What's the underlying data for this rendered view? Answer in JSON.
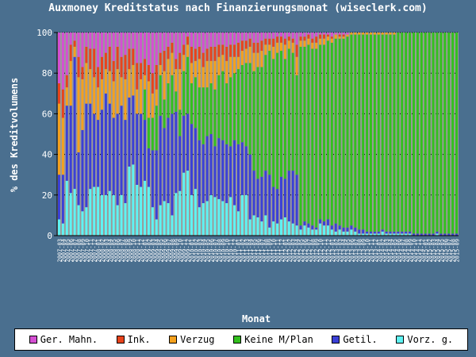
{
  "chart_data": {
    "type": "bar",
    "stacked": true,
    "title": "Auxmoney Kreditstatus nach Finanzierungsmonat (wiseclerk.com)",
    "xlabel": "Monat",
    "ylabel": "% des Kreditvolumens",
    "ylim": [
      0,
      100
    ],
    "yticks": [
      0,
      20,
      40,
      60,
      80,
      100
    ],
    "grid": true,
    "legend_position": "bottom",
    "colors": {
      "plot_background": "#9a9a9a",
      "page_background": "#4a6f8f"
    },
    "categories": [
      "2007-03",
      "2007-04",
      "2007-05",
      "2007-06",
      "2007-07",
      "2007-08",
      "2007-09",
      "2007-10",
      "2007-11",
      "2007-12",
      "2008-01",
      "2008-02",
      "2008-03",
      "2008-04",
      "2008-05",
      "2008-06",
      "2008-07",
      "2008-08",
      "2008-09",
      "2008-10",
      "2008-11",
      "2008-12",
      "2009-01",
      "2009-02",
      "2009-03",
      "2009-04",
      "2009-05",
      "2009-06",
      "2009-07",
      "2009-08",
      "2009-09",
      "2009-10",
      "2009-11",
      "2009-12",
      "2010-01",
      "2010-02",
      "2010-03",
      "2010-04",
      "2010-05",
      "2010-06",
      "2010-07",
      "2010-08",
      "2010-09",
      "2010-10",
      "2010-11",
      "2010-12",
      "2011-01",
      "2011-02",
      "2011-03",
      "2011-04",
      "2011-05",
      "2011-06",
      "2011-07",
      "2011-08",
      "2011-09",
      "2011-10",
      "2011-11",
      "2011-12",
      "2012-01",
      "2012-02",
      "2012-03",
      "2012-04",
      "2012-05",
      "2012-06",
      "2012-07",
      "2012-08",
      "2012-09",
      "2012-10",
      "2012-11",
      "2012-12",
      "2013-01",
      "2013-02",
      "2013-03",
      "2013-04",
      "2013-05",
      "2013-06",
      "2013-07",
      "2013-08",
      "2013-09",
      "2013-10",
      "2013-11",
      "2013-12",
      "2014-01",
      "2014-02",
      "2014-03",
      "2014-04",
      "2014-05",
      "2014-06",
      "2014-07",
      "2014-08",
      "2014-09",
      "2014-10",
      "2014-11",
      "2014-12",
      "2015-01",
      "2015-02",
      "2015-03",
      "2015-04",
      "2015-05",
      "2015-06",
      "2015-07",
      "2015-08",
      "2015-09"
    ],
    "series": [
      {
        "name": "Vorz. g.",
        "color": "#5ff3f3",
        "values": [
          8,
          6,
          27,
          21,
          23,
          15,
          12,
          14,
          23,
          24,
          24,
          20,
          20,
          22,
          20,
          15,
          20,
          16,
          34,
          35,
          25,
          24,
          27,
          24,
          14,
          8,
          15,
          17,
          16,
          10,
          21,
          22,
          31,
          32,
          20,
          23,
          14,
          16,
          17,
          20,
          19,
          18,
          17,
          16,
          19,
          15,
          12,
          20,
          20,
          8,
          10,
          9,
          7,
          10,
          4,
          7,
          6,
          8,
          9,
          7,
          6,
          5,
          3,
          5,
          4,
          3,
          3,
          6,
          5,
          5,
          3,
          2,
          3,
          2,
          2,
          3,
          2,
          1,
          1,
          1,
          1,
          1,
          1,
          2,
          1,
          1,
          1,
          1,
          1,
          1,
          1,
          0,
          0,
          0,
          0,
          0,
          0,
          1,
          0,
          0,
          0,
          0,
          0
        ]
      },
      {
        "name": "Getil.",
        "color": "#3b40d6",
        "values": [
          22,
          24,
          37,
          43,
          65,
          26,
          40,
          51,
          42,
          36,
          33,
          42,
          50,
          43,
          38,
          45,
          44,
          41,
          34,
          34,
          35,
          36,
          30,
          19,
          28,
          34,
          44,
          36,
          42,
          50,
          40,
          27,
          28,
          28,
          35,
          30,
          33,
          29,
          32,
          30,
          25,
          30,
          30,
          29,
          25,
          32,
          33,
          26,
          24,
          32,
          22,
          19,
          22,
          22,
          26,
          17,
          17,
          21,
          19,
          25,
          26,
          25,
          2,
          2,
          2,
          2,
          1,
          2,
          2,
          3,
          2,
          4,
          2,
          2,
          2,
          2,
          2,
          2,
          2,
          1,
          1,
          1,
          1,
          1,
          1,
          1,
          1,
          1,
          1,
          1,
          1,
          1,
          1,
          1,
          1,
          1,
          1,
          1,
          1,
          1,
          1,
          1,
          1
        ]
      },
      {
        "name": "Keine M/Plan",
        "color": "#33c01e",
        "values": [
          0,
          0,
          0,
          0,
          0,
          0,
          0,
          0,
          0,
          0,
          0,
          0,
          0,
          0,
          0,
          0,
          0,
          0,
          0,
          0,
          0,
          0,
          15,
          15,
          16,
          22,
          20,
          14,
          17,
          19,
          10,
          13,
          22,
          28,
          20,
          25,
          26,
          28,
          24,
          25,
          28,
          31,
          34,
          30,
          34,
          33,
          37,
          38,
          41,
          45,
          49,
          55,
          54,
          57,
          61,
          63,
          67,
          62,
          59,
          60,
          58,
          49,
          88,
          86,
          88,
          87,
          88,
          86,
          87,
          88,
          90,
          91,
          92,
          93,
          94,
          94,
          95,
          96,
          96,
          97,
          97,
          97,
          97,
          96,
          97,
          97,
          97,
          98,
          98,
          98,
          98,
          99,
          99,
          99,
          99,
          99,
          99,
          98,
          99,
          99,
          99,
          99,
          99
        ]
      },
      {
        "name": "Verzug",
        "color": "#f5a11d",
        "values": [
          35,
          28,
          9,
          22,
          5,
          37,
          25,
          20,
          17,
          18,
          16,
          15,
          12,
          16,
          18,
          22,
          14,
          20,
          14,
          15,
          12,
          17,
          7,
          18,
          12,
          8,
          5,
          14,
          12,
          11,
          11,
          20,
          8,
          6,
          10,
          8,
          14,
          10,
          13,
          11,
          14,
          9,
          8,
          11,
          10,
          8,
          6,
          7,
          7,
          8,
          9,
          7,
          8,
          5,
          3,
          6,
          5,
          4,
          7,
          4,
          5,
          9,
          3,
          3,
          3,
          3,
          3,
          3,
          3,
          2,
          2,
          2,
          1,
          1,
          1,
          1,
          1,
          1,
          1,
          1,
          1,
          1,
          1,
          1,
          1,
          1,
          1,
          0,
          0,
          0,
          0,
          0,
          0,
          0,
          0,
          0,
          0,
          0,
          0,
          0,
          0,
          0,
          0
        ]
      },
      {
        "name": "Ink.",
        "color": "#e8431b",
        "values": [
          10,
          14,
          6,
          8,
          3,
          10,
          6,
          8,
          10,
          14,
          10,
          11,
          8,
          12,
          10,
          11,
          10,
          12,
          10,
          8,
          13,
          8,
          8,
          8,
          10,
          12,
          6,
          10,
          6,
          5,
          5,
          8,
          5,
          4,
          8,
          6,
          6,
          7,
          6,
          7,
          7,
          6,
          5,
          7,
          6,
          6,
          7,
          5,
          4,
          4,
          5,
          5,
          5,
          3,
          3,
          4,
          3,
          3,
          3,
          2,
          2,
          6,
          2,
          2,
          2,
          2,
          3,
          2,
          2,
          1,
          1,
          0,
          1,
          1,
          0,
          0,
          0,
          0,
          0,
          0,
          0,
          0,
          0,
          0,
          0,
          0,
          0,
          0,
          0,
          0,
          0,
          0,
          0,
          0,
          0,
          0,
          0,
          0,
          0,
          0,
          0,
          0,
          0
        ]
      },
      {
        "name": "Ger. Mahn.",
        "color": "#d54fd3",
        "values": [
          25,
          28,
          21,
          6,
          4,
          12,
          17,
          7,
          8,
          8,
          17,
          12,
          10,
          7,
          14,
          7,
          12,
          11,
          8,
          8,
          15,
          15,
          13,
          16,
          20,
          16,
          10,
          9,
          7,
          5,
          13,
          10,
          6,
          2,
          7,
          8,
          7,
          10,
          8,
          7,
          7,
          6,
          6,
          7,
          6,
          6,
          5,
          4,
          4,
          3,
          5,
          5,
          4,
          3,
          3,
          3,
          2,
          2,
          3,
          2,
          3,
          6,
          2,
          2,
          1,
          3,
          2,
          1,
          1,
          1,
          2,
          1,
          1,
          1,
          1,
          0,
          0,
          0,
          0,
          0,
          0,
          0,
          0,
          0,
          0,
          0,
          0,
          0,
          0,
          0,
          0,
          0,
          0,
          0,
          0,
          0,
          0,
          0,
          0,
          0,
          0,
          0,
          0
        ]
      }
    ],
    "legend_order": [
      "Ger. Mahn.",
      "Ink.",
      "Verzug",
      "Keine M/Plan",
      "Getil.",
      "Vorz. g."
    ]
  }
}
